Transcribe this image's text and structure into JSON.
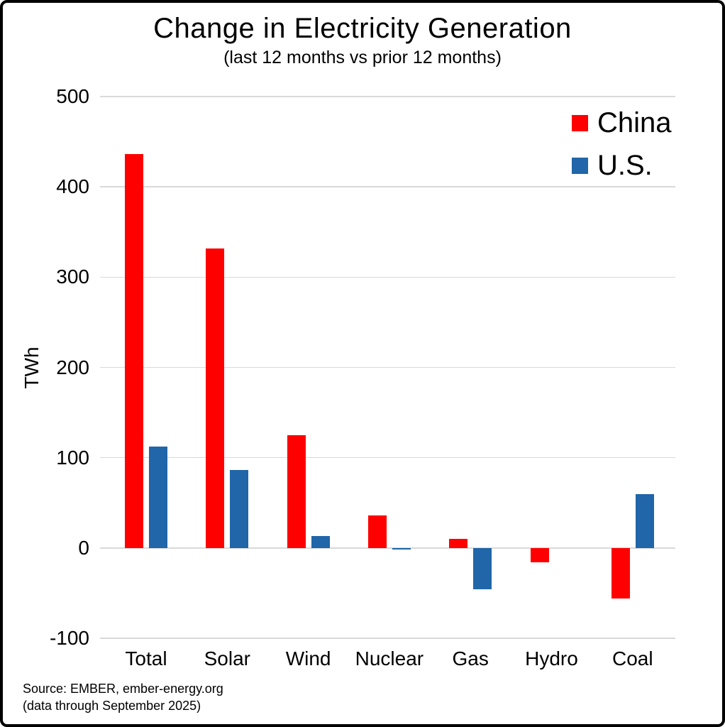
{
  "header": {
    "title": "Change in Electricity Generation",
    "subtitle": "(last 12 months vs prior 12 months)"
  },
  "chart_data": {
    "type": "bar",
    "categories": [
      "Total",
      "Solar",
      "Wind",
      "Nuclear",
      "Gas",
      "Hydro",
      "Coal"
    ],
    "series": [
      {
        "name": "China",
        "color": "#FF0000",
        "values": [
          436,
          332,
          125,
          36,
          10,
          -16,
          -56
        ]
      },
      {
        "name": "U.S.",
        "color": "#2066A8",
        "values": [
          112,
          86,
          13,
          -2,
          -46,
          0,
          60
        ]
      }
    ],
    "title": "Change in Electricity Generation",
    "subtitle": "(last 12 months vs prior 12 months)",
    "xlabel": "",
    "ylabel": "TWh",
    "ylim": [
      -100,
      500
    ],
    "ytick_step": 100,
    "yticks": [
      500,
      400,
      300,
      200,
      100,
      0,
      -100
    ],
    "grid": true,
    "grid_color": "#D9D9D9",
    "legend_position": "top-right"
  },
  "footer": {
    "source_line1": "Source: EMBER, ember-energy.org",
    "source_line2": "(data through September 2025)"
  },
  "colors": {
    "background": "#FFFFFF",
    "border": "#000000",
    "text": "#000000",
    "china": "#FF0000",
    "us": "#2066A8",
    "grid": "#D9D9D9"
  }
}
